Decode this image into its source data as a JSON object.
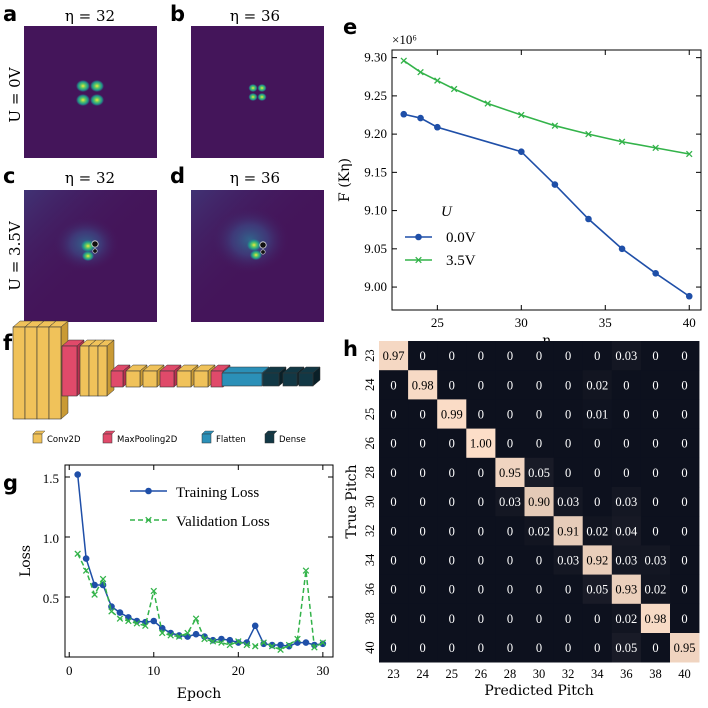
{
  "panels": {
    "a": {
      "label": "a",
      "title": "η = 32",
      "row_label": "U = 0V",
      "field": "field-map"
    },
    "b": {
      "label": "b",
      "title": "η = 36",
      "field": "field-map"
    },
    "c": {
      "label": "c",
      "title": "η = 32",
      "row_label": "U = 3.5V",
      "field": "field-map"
    },
    "d": {
      "label": "d",
      "title": "η = 36",
      "field": "field-map"
    },
    "e": {
      "label": "e"
    },
    "f": {
      "label": "f"
    },
    "g": {
      "label": "g"
    },
    "h": {
      "label": "h"
    }
  },
  "colors": {
    "blue": "#1f4fa8",
    "green": "#33b34a",
    "map_bg": "#44155a",
    "conv": "#f0c25a",
    "pool": "#e04a6a",
    "flatten": "#2b90b8",
    "dense": "#123845"
  },
  "chart_data": [
    {
      "id": "e",
      "type": "line",
      "title": "",
      "xlabel": "η",
      "ylabel": "F (Kη)",
      "exponent_label": "×10⁶",
      "xlim": [
        22.3,
        40.7
      ],
      "ylim": [
        8.97,
        9.31
      ],
      "xticks": [
        25,
        30,
        35,
        40
      ],
      "yticks": [
        9.0,
        9.05,
        9.1,
        9.15,
        9.2,
        9.25,
        9.3
      ],
      "ytick_labels": [
        "9.00",
        "9.05",
        "9.10",
        "9.15",
        "9.20",
        "9.25",
        "9.30"
      ],
      "legend_title": "U",
      "legend_position": "lower-left",
      "series": [
        {
          "name": "0.0V",
          "marker": "circle",
          "color": "#1f4fa8",
          "x": [
            23,
            24,
            25,
            30,
            32,
            34,
            36,
            38,
            40
          ],
          "y": [
            9.226,
            9.221,
            9.209,
            9.177,
            9.134,
            9.089,
            9.05,
            9.018,
            8.988
          ]
        },
        {
          "name": "3.5V",
          "marker": "x",
          "color": "#33b34a",
          "x": [
            23,
            24,
            25,
            26,
            28,
            30,
            32,
            34,
            36,
            38,
            40
          ],
          "y": [
            9.296,
            9.281,
            9.27,
            9.259,
            9.24,
            9.225,
            9.211,
            9.2,
            9.19,
            9.182,
            9.174
          ]
        }
      ]
    },
    {
      "id": "f",
      "type": "diagram",
      "layers": [
        {
          "kind": "conv"
        },
        {
          "kind": "conv"
        },
        {
          "kind": "conv"
        },
        {
          "kind": "conv"
        },
        {
          "kind": "pool"
        },
        {
          "kind": "conv"
        },
        {
          "kind": "conv"
        },
        {
          "kind": "conv"
        },
        {
          "kind": "pool"
        },
        {
          "kind": "conv"
        },
        {
          "kind": "conv"
        },
        {
          "kind": "pool"
        },
        {
          "kind": "conv"
        },
        {
          "kind": "conv"
        },
        {
          "kind": "pool"
        },
        {
          "kind": "flatten"
        },
        {
          "kind": "dense"
        },
        {
          "kind": "dense"
        },
        {
          "kind": "dense"
        }
      ],
      "legend": [
        {
          "kind": "conv",
          "name": "Conv2D"
        },
        {
          "kind": "pool",
          "name": "MaxPooling2D"
        },
        {
          "kind": "flatten",
          "name": "Flatten"
        },
        {
          "kind": "dense",
          "name": "Dense"
        }
      ]
    },
    {
      "id": "g",
      "type": "line",
      "xlabel": "Epoch",
      "ylabel": "Loss",
      "xlim": [
        -0.5,
        31.2
      ],
      "ylim": [
        0.0,
        1.6
      ],
      "xticks": [
        0,
        10,
        20,
        30
      ],
      "yticks": [
        0.5,
        1.0,
        1.5
      ],
      "ytick_labels": [
        "0.5",
        "1.0",
        "1.5"
      ],
      "legend_position": "top-right",
      "series": [
        {
          "name": "Training Loss",
          "marker": "circle",
          "color": "#1f4fa8",
          "dash": "solid",
          "x": [
            1,
            2,
            3,
            4,
            5,
            6,
            7,
            8,
            9,
            10,
            11,
            12,
            13,
            14,
            15,
            16,
            17,
            18,
            19,
            20,
            21,
            22,
            23,
            24,
            25,
            26,
            27,
            28,
            29,
            30
          ],
          "y": [
            1.52,
            0.82,
            0.6,
            0.6,
            0.42,
            0.37,
            0.33,
            0.3,
            0.29,
            0.3,
            0.24,
            0.2,
            0.18,
            0.17,
            0.19,
            0.17,
            0.14,
            0.15,
            0.14,
            0.12,
            0.12,
            0.26,
            0.11,
            0.1,
            0.1,
            0.09,
            0.12,
            0.12,
            0.1,
            0.11
          ]
        },
        {
          "name": "Validation Loss",
          "marker": "x",
          "color": "#33b34a",
          "dash": "dashed",
          "x": [
            1,
            2,
            3,
            4,
            5,
            6,
            7,
            8,
            9,
            10,
            11,
            12,
            13,
            14,
            15,
            16,
            17,
            18,
            19,
            20,
            21,
            22,
            23,
            24,
            25,
            26,
            27,
            28,
            29,
            30
          ],
          "y": [
            0.86,
            0.72,
            0.52,
            0.65,
            0.38,
            0.32,
            0.3,
            0.28,
            0.26,
            0.55,
            0.2,
            0.18,
            0.17,
            0.2,
            0.32,
            0.15,
            0.13,
            0.12,
            0.1,
            0.13,
            0.1,
            0.09,
            0.12,
            0.09,
            0.06,
            0.1,
            0.15,
            0.72,
            0.08,
            0.12
          ]
        }
      ]
    },
    {
      "id": "h",
      "type": "heatmap",
      "xlabel": "Predicted Pitch",
      "ylabel": "True Pitch",
      "labels": [
        "23",
        "24",
        "25",
        "26",
        "28",
        "30",
        "32",
        "34",
        "36",
        "38",
        "40"
      ],
      "values": [
        [
          0.97,
          0,
          0,
          0,
          0,
          0,
          0,
          0,
          0.03,
          0,
          0
        ],
        [
          0,
          0.98,
          0,
          0,
          0,
          0,
          0,
          0.02,
          0,
          0,
          0
        ],
        [
          0,
          0,
          0.99,
          0,
          0,
          0,
          0,
          0.01,
          0,
          0,
          0
        ],
        [
          0,
          0,
          0,
          1.0,
          0,
          0,
          0,
          0,
          0,
          0,
          0
        ],
        [
          0,
          0,
          0,
          0,
          0.95,
          0.05,
          0,
          0,
          0,
          0,
          0
        ],
        [
          0,
          0,
          0,
          0,
          0.03,
          0.9,
          0.03,
          0,
          0.03,
          0,
          0
        ],
        [
          0,
          0,
          0,
          0,
          0,
          0.02,
          0.91,
          0.02,
          0.04,
          0,
          0
        ],
        [
          0,
          0,
          0,
          0,
          0,
          0,
          0.03,
          0.92,
          0.03,
          0.03,
          0
        ],
        [
          0,
          0,
          0,
          0,
          0,
          0,
          0,
          0.05,
          0.93,
          0.02,
          0
        ],
        [
          0,
          0,
          0,
          0,
          0,
          0,
          0,
          0,
          0.02,
          0.98,
          0
        ],
        [
          0,
          0,
          0,
          0,
          0,
          0,
          0,
          0,
          0.05,
          0,
          0.95
        ]
      ],
      "cell_labels": [
        [
          "0.97",
          "0",
          "0",
          "0",
          "0",
          "0",
          "0",
          "0",
          "0.03",
          "0",
          "0"
        ],
        [
          "0",
          "0.98",
          "0",
          "0",
          "0",
          "0",
          "0",
          "0.02",
          "0",
          "0",
          "0"
        ],
        [
          "0",
          "0",
          "0.99",
          "0",
          "0",
          "0",
          "0",
          "0.01",
          "0",
          "0",
          "0"
        ],
        [
          "0",
          "0",
          "0",
          "1.00",
          "0",
          "0",
          "0",
          "0",
          "0",
          "0",
          "0"
        ],
        [
          "0",
          "0",
          "0",
          "0",
          "0.95",
          "0.05",
          "0",
          "0",
          "0",
          "0",
          "0"
        ],
        [
          "0",
          "0",
          "0",
          "0",
          "0.03",
          "0.90",
          "0.03",
          "0",
          "0.03",
          "0",
          "0"
        ],
        [
          "0",
          "0",
          "0",
          "0",
          "0",
          "0.02",
          "0.91",
          "0.02",
          "0.04",
          "0",
          "0"
        ],
        [
          "0",
          "0",
          "0",
          "0",
          "0",
          "0",
          "0.03",
          "0.92",
          "0.03",
          "0.03",
          "0"
        ],
        [
          "0",
          "0",
          "0",
          "0",
          "0",
          "0",
          "0",
          "0.05",
          "0.93",
          "0.02",
          "0"
        ],
        [
          "0",
          "0",
          "0",
          "0",
          "0",
          "0",
          "0",
          "0",
          "0.02",
          "0.98",
          "0"
        ],
        [
          "0",
          "0",
          "0",
          "0",
          "0",
          "0",
          "0",
          "0",
          "0.05",
          "0",
          "0.95"
        ]
      ]
    }
  ]
}
